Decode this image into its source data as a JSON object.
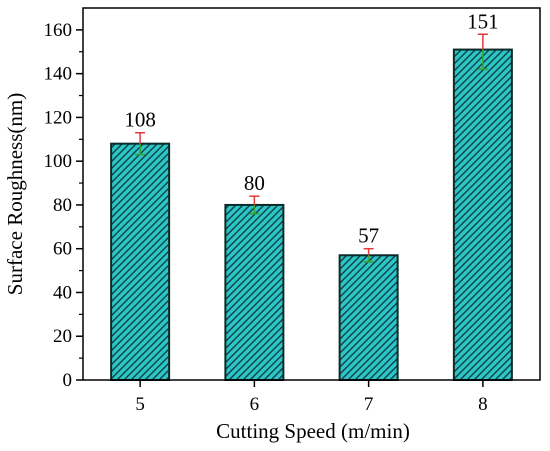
{
  "chart_data": {
    "type": "bar",
    "categories": [
      "5",
      "6",
      "7",
      "8"
    ],
    "values": [
      108,
      80,
      57,
      151
    ],
    "error_upper": [
      113,
      84,
      60,
      158
    ],
    "error_lower": [
      103,
      76,
      54,
      142
    ],
    "data_labels": [
      "108",
      "80",
      "57",
      "151"
    ],
    "xlabel": "Cutting Speed (m/min)",
    "ylabel": "Surface Roughness(nm)",
    "ylim": [
      0,
      170
    ],
    "yticks": [
      "0",
      "20",
      "40",
      "60",
      "80",
      "100",
      "120",
      "140",
      "160"
    ],
    "ytick_values": [
      0,
      20,
      40,
      60,
      80,
      100,
      120,
      140,
      160
    ],
    "grid": false,
    "legend": "none",
    "bar_fill_pattern": "diagonal-hatch"
  },
  "colors": {
    "bar_fill": "#2cc6c6",
    "hatch": "#0d3f45",
    "bar_edge": "#0c2a2a",
    "error_bar_upper": "#e03a3a",
    "error_bar_lower": "#3aa030",
    "axis": "#000000"
  }
}
